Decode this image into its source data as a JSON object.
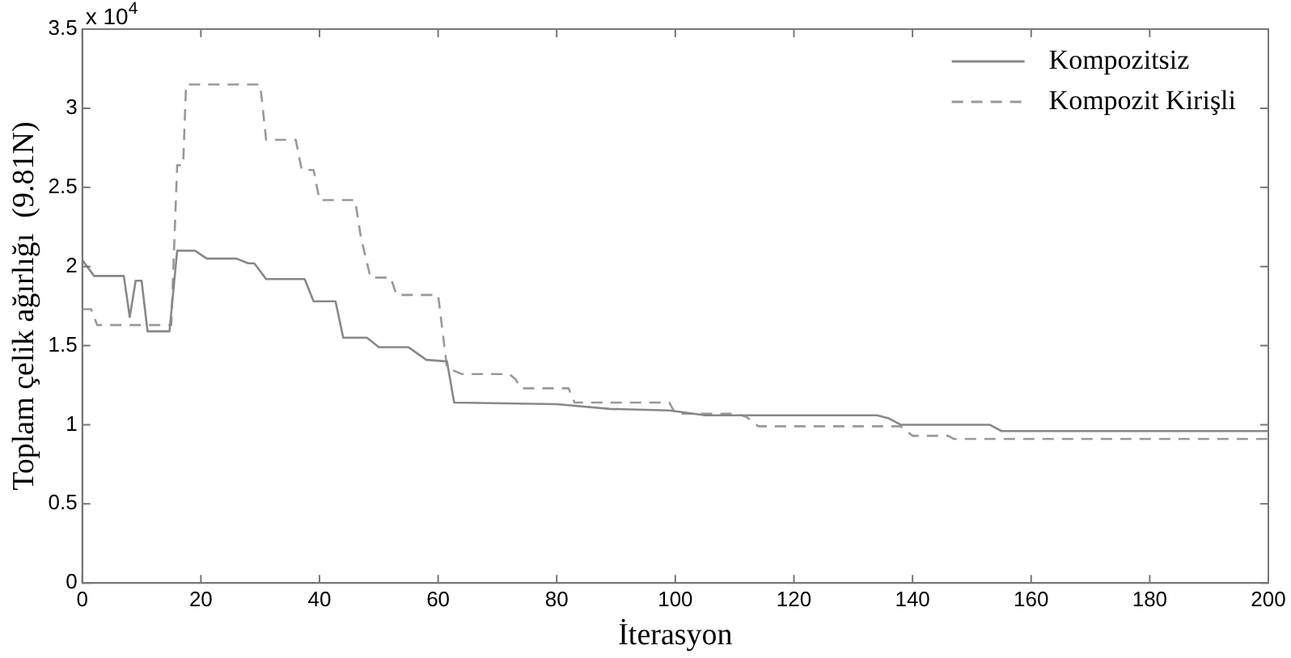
{
  "chart_data": {
    "type": "line",
    "xlabel": "İterasyon",
    "ylabel": "Toplam çelik ağırlığı  (9.81N)",
    "annotations": [
      "x 10$^{4}$"
    ],
    "xlim": [
      0,
      200
    ],
    "xticks": [
      0,
      20,
      40,
      60,
      80,
      100,
      120,
      140,
      160,
      180,
      200
    ],
    "ylim": [
      0,
      3.5
    ],
    "yticks": [
      0,
      0.5,
      1,
      1.5,
      2,
      2.5,
      3,
      3.5
    ],
    "grid": false,
    "legend": "top right",
    "marker": "none",
    "series": [
      {
        "name": "Kompozitsiz",
        "color": "#888888",
        "line_style": "solid",
        "x": [
          0,
          2,
          7,
          8,
          9,
          10,
          11,
          14.7,
          16,
          19,
          21,
          26,
          28,
          29,
          31,
          37.5,
          39,
          42.7,
          44,
          48,
          50,
          55,
          58,
          61.5,
          62.7,
          80,
          89,
          99,
          105,
          134,
          136,
          138,
          153,
          155,
          200
        ],
        "values": [
          2.04,
          1.94,
          1.94,
          1.68,
          1.91,
          1.91,
          1.59,
          1.59,
          2.1,
          2.1,
          2.05,
          2.05,
          2.02,
          2.02,
          1.92,
          1.92,
          1.78,
          1.78,
          1.55,
          1.55,
          1.49,
          1.49,
          1.41,
          1.4,
          1.14,
          1.13,
          1.1,
          1.09,
          1.06,
          1.06,
          1.04,
          1,
          1,
          0.96,
          0.96
        ]
      },
      {
        "name": "Kompozit Kirişli",
        "color": "#999999",
        "line_style": "dashed",
        "x": [
          0,
          1.5,
          2.5,
          13,
          15,
          16,
          17,
          17.5,
          30,
          31,
          36,
          37,
          39,
          40,
          46,
          47,
          48.6,
          52,
          53,
          60,
          61.5,
          64,
          72,
          73,
          74,
          82,
          83,
          99,
          100,
          110,
          112,
          114,
          138,
          140,
          146,
          147,
          200
        ],
        "values": [
          1.73,
          1.73,
          1.63,
          1.63,
          1.63,
          2.64,
          2.64,
          3.15,
          3.15,
          2.8,
          2.8,
          2.61,
          2.61,
          2.42,
          2.42,
          2.18,
          1.93,
          1.93,
          1.82,
          1.82,
          1.36,
          1.32,
          1.32,
          1.29,
          1.23,
          1.23,
          1.14,
          1.14,
          1.07,
          1.07,
          1.05,
          0.99,
          0.99,
          0.93,
          0.93,
          0.91,
          0.91
        ]
      }
    ]
  }
}
